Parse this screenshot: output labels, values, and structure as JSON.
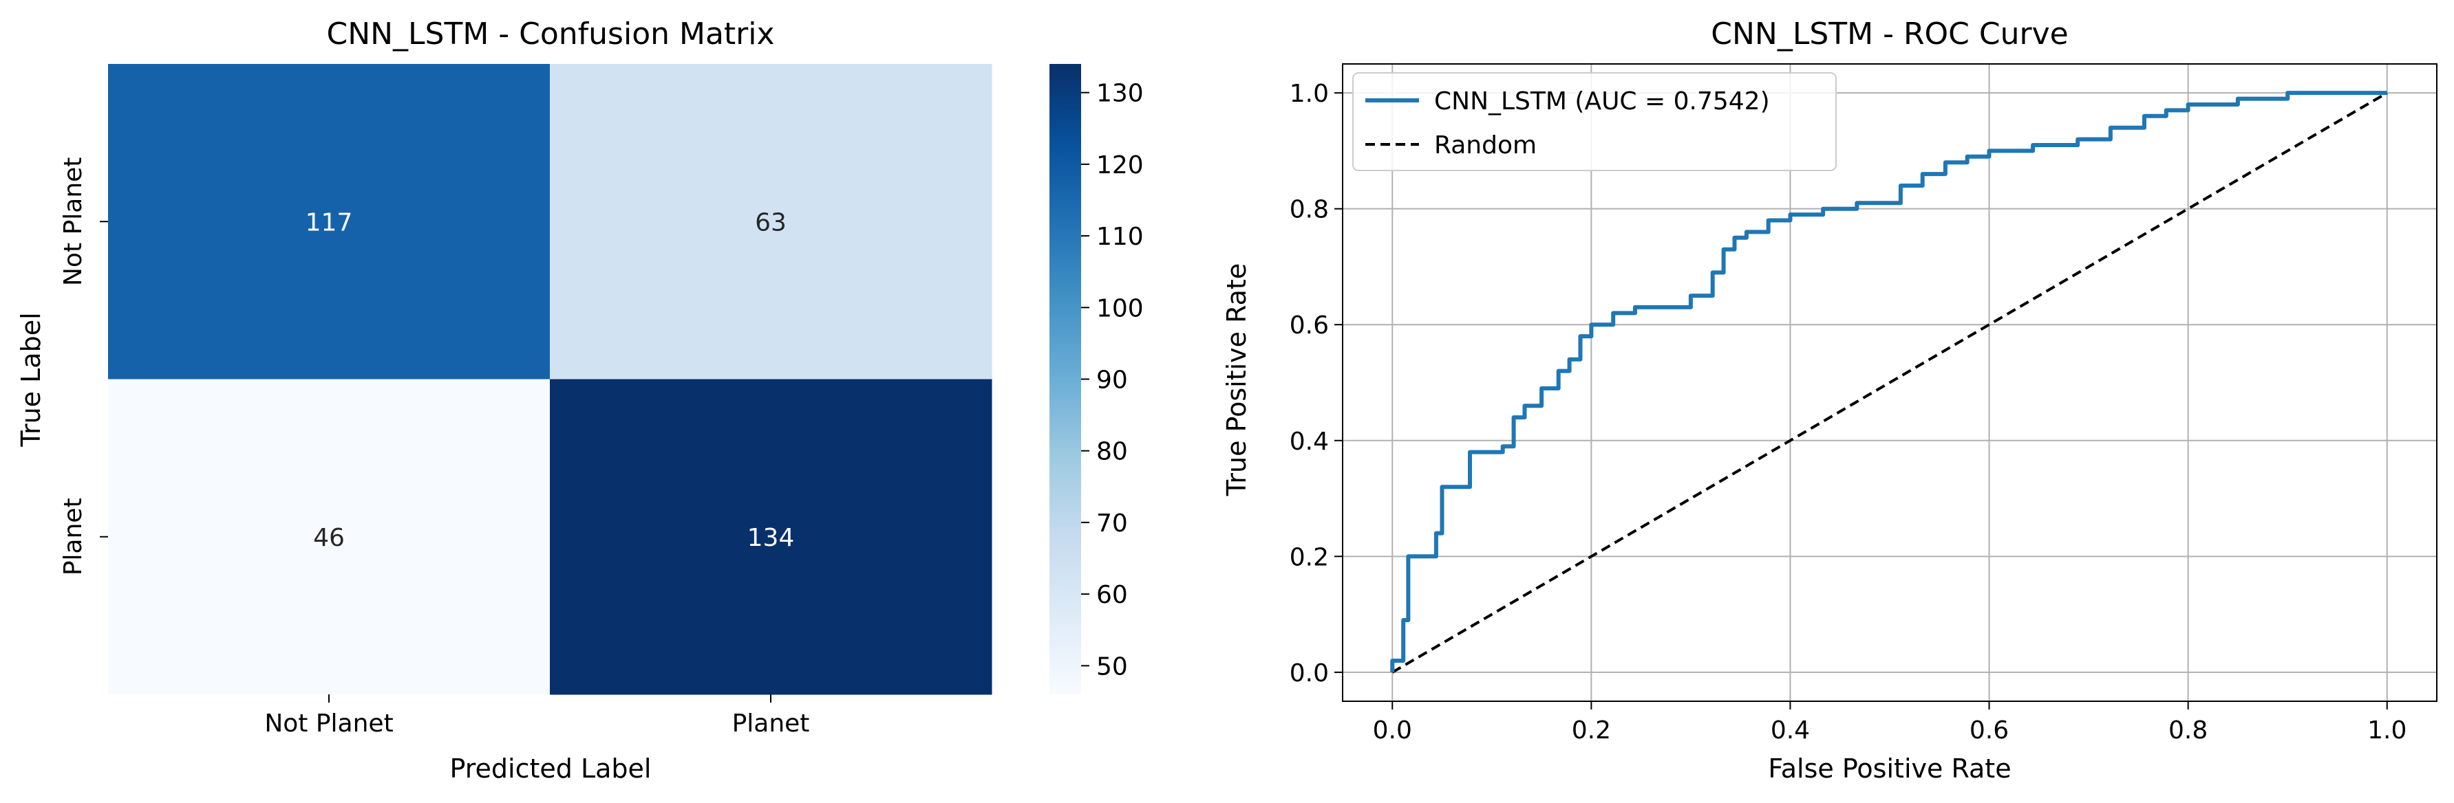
{
  "chart_data": [
    {
      "type": "heatmap",
      "title": "CNN_LSTM - Confusion Matrix",
      "xlabel": "Predicted Label",
      "ylabel": "True Label",
      "x_categories": [
        "Not Planet",
        "Planet"
      ],
      "y_categories": [
        "Not Planet",
        "Planet"
      ],
      "values": [
        [
          117,
          63
        ],
        [
          46,
          134
        ]
      ],
      "colorbar": {
        "colormap": "Blues",
        "min": 46,
        "max": 134,
        "ticks": [
          "130",
          "120",
          "110",
          "100",
          "90",
          "80",
          "70",
          "60",
          "50"
        ]
      }
    },
    {
      "type": "line",
      "title": "CNN_LSTM - ROC Curve",
      "xlabel": "False Positive Rate",
      "ylabel": "True Positive Rate",
      "xlim": [
        -0.05,
        1.05
      ],
      "ylim": [
        -0.05,
        1.05
      ],
      "x_ticks": [
        "0.0",
        "0.2",
        "0.4",
        "0.6",
        "0.8",
        "1.0"
      ],
      "y_ticks": [
        "0.0",
        "0.2",
        "0.4",
        "0.6",
        "0.8",
        "1.0"
      ],
      "grid": true,
      "legend_position": "top-left",
      "series": [
        {
          "name": "CNN_LSTM (AUC = 0.7542)",
          "color": "#1f77b4",
          "style": "solid",
          "x": [
            0.0,
            0.0,
            0.011,
            0.011,
            0.016,
            0.016,
            0.022,
            0.022,
            0.044,
            0.044,
            0.05,
            0.05,
            0.072,
            0.072,
            0.078,
            0.078,
            0.111,
            0.111,
            0.122,
            0.122,
            0.133,
            0.133,
            0.15,
            0.15,
            0.167,
            0.167,
            0.178,
            0.178,
            0.189,
            0.189,
            0.2,
            0.2,
            0.222,
            0.222,
            0.244,
            0.244,
            0.3,
            0.3,
            0.322,
            0.322,
            0.333,
            0.333,
            0.344,
            0.344,
            0.356,
            0.356,
            0.378,
            0.378,
            0.4,
            0.4,
            0.433,
            0.433,
            0.467,
            0.467,
            0.511,
            0.511,
            0.533,
            0.533,
            0.556,
            0.556,
            0.578,
            0.578,
            0.6,
            0.6,
            0.644,
            0.644,
            0.689,
            0.689,
            0.722,
            0.722,
            0.756,
            0.756,
            0.778,
            0.778,
            0.8,
            0.8,
            0.85,
            0.85,
            0.9,
            0.9,
            0.95,
            0.95,
            1.0
          ],
          "y": [
            0.0,
            0.02,
            0.02,
            0.09,
            0.09,
            0.2,
            0.2,
            0.2,
            0.2,
            0.24,
            0.24,
            0.32,
            0.32,
            0.32,
            0.32,
            0.38,
            0.38,
            0.39,
            0.39,
            0.44,
            0.44,
            0.46,
            0.46,
            0.49,
            0.49,
            0.52,
            0.52,
            0.54,
            0.54,
            0.58,
            0.58,
            0.6,
            0.6,
            0.62,
            0.62,
            0.63,
            0.63,
            0.65,
            0.65,
            0.69,
            0.69,
            0.73,
            0.73,
            0.75,
            0.75,
            0.76,
            0.76,
            0.78,
            0.78,
            0.79,
            0.79,
            0.8,
            0.8,
            0.81,
            0.81,
            0.84,
            0.84,
            0.86,
            0.86,
            0.88,
            0.88,
            0.89,
            0.89,
            0.9,
            0.9,
            0.91,
            0.91,
            0.92,
            0.92,
            0.94,
            0.94,
            0.96,
            0.96,
            0.97,
            0.97,
            0.98,
            0.98,
            0.99,
            0.99,
            1.0,
            1.0,
            1.0,
            1.0
          ]
        },
        {
          "name": "Random",
          "color": "#000000",
          "style": "dashed",
          "x": [
            0,
            1
          ],
          "y": [
            0,
            1
          ]
        }
      ]
    }
  ]
}
